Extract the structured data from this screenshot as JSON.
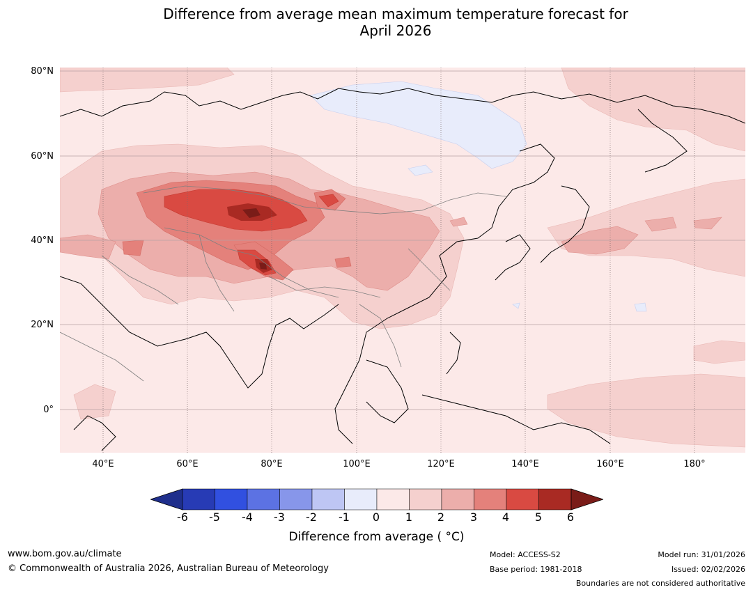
{
  "title": {
    "line1": "Difference from average mean maximum temperature forecast for",
    "line2": "April 2026"
  },
  "map": {
    "lat_labels": [
      "80°N",
      "60°N",
      "40°N",
      "20°N",
      "0°"
    ],
    "lon_labels": [
      "40°E",
      "60°E",
      "80°E",
      "100°E",
      "120°E",
      "140°E",
      "160°E",
      "180°"
    ],
    "region": "Asia"
  },
  "colorbar": {
    "ticks": [
      "-6",
      "-5",
      "-4",
      "-3",
      "-2",
      "-1",
      "0",
      "1",
      "2",
      "3",
      "4",
      "5",
      "6"
    ],
    "colors": [
      "#1f2f8c",
      "#273bb5",
      "#3150e0",
      "#5c72e3",
      "#8796ea",
      "#bec6f4",
      "#e8ecfb",
      "#fce9e8",
      "#f5d0ce",
      "#ecaeab",
      "#e4817b",
      "#d94a42",
      "#a92a23",
      "#7a1c18"
    ],
    "label": "Difference from average ( °C)"
  },
  "footer": {
    "website": "www.bom.gov.au/climate",
    "copyright": "© Commonwealth of Australia 2026, Australian Bureau of Meteorology",
    "model": "Model: ACCESS-S2",
    "base_period": "Base period: 1981-2018",
    "model_run": "Model run: 31/01/2026",
    "issued": "Issued: 02/02/2026",
    "disclaimer": "Boundaries are not considered authoritative"
  }
}
